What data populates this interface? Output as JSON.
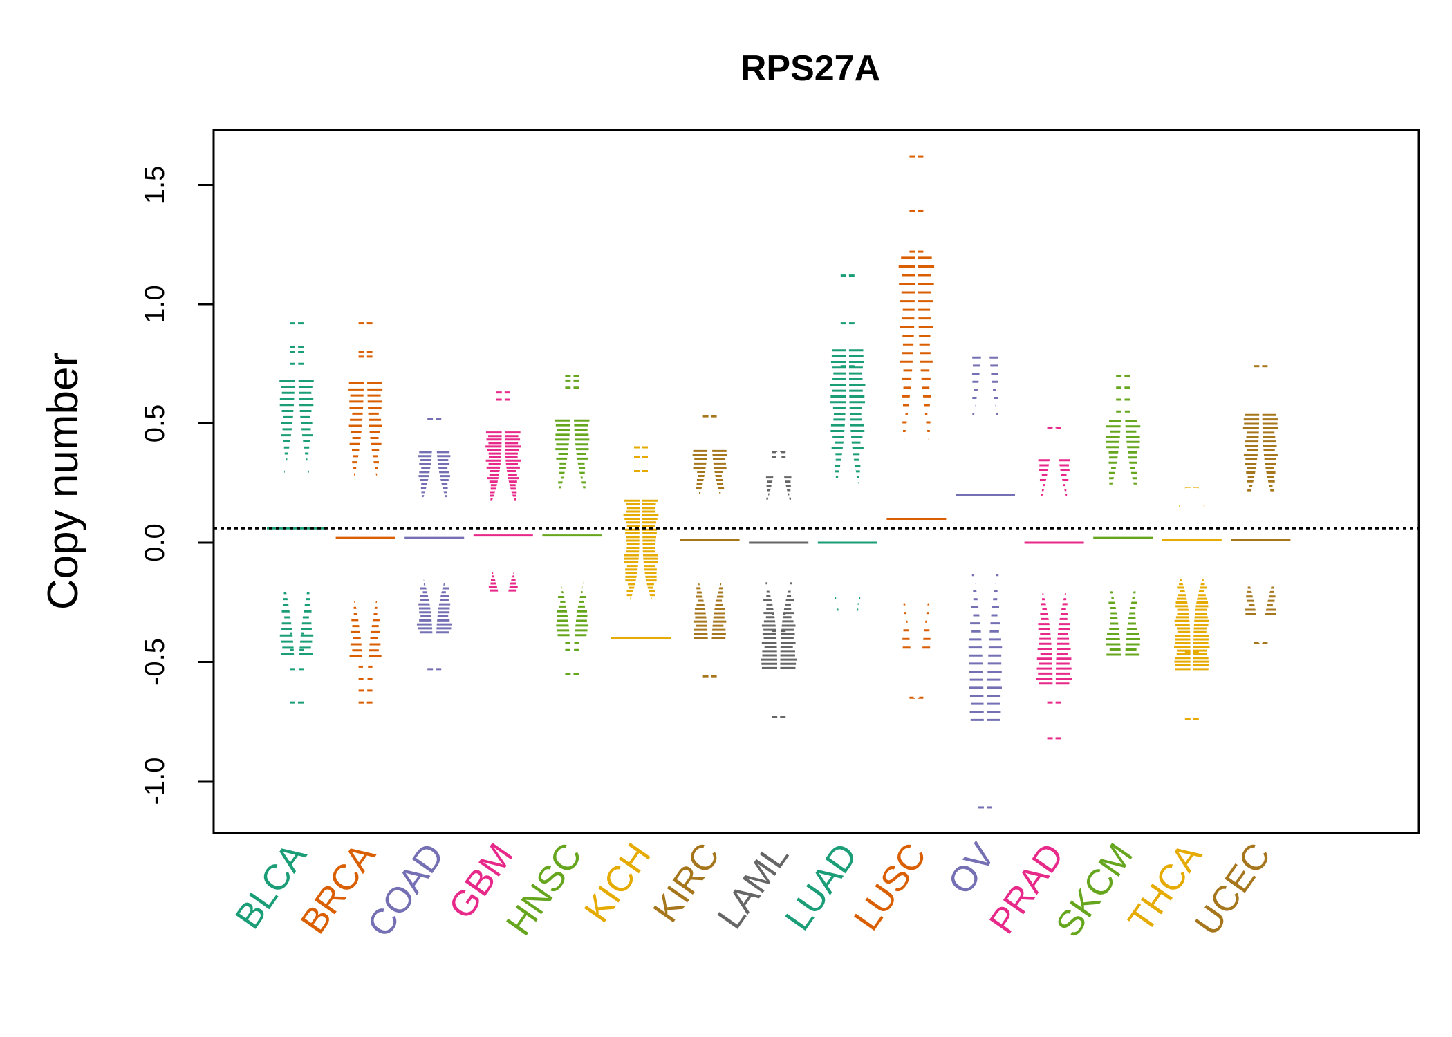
{
  "chart_data": {
    "type": "beanplot",
    "title": "RPS27A",
    "xlabel": "",
    "ylabel": "Copy number",
    "ylim": [
      -1.2,
      1.73
    ],
    "yticks": [
      -1.0,
      -0.5,
      0.0,
      0.5,
      1.0,
      1.5
    ],
    "ytick_labels": [
      "-1.0",
      "-0.5",
      "0.0",
      "0.5",
      "1.0",
      "1.5"
    ],
    "reference_line": 0.06,
    "grid": false,
    "legend": "none",
    "categories": [
      "BLCA",
      "BRCA",
      "COAD",
      "GBM",
      "HNSC",
      "KICH",
      "KIRC",
      "LAML",
      "LUAD",
      "LUSC",
      "OV",
      "PRAD",
      "SKCM",
      "THCA",
      "UCEC"
    ],
    "colors": [
      "#1b9e77",
      "#d95f02",
      "#7570b3",
      "#e7298a",
      "#66a61e",
      "#e6ab02",
      "#a6761d",
      "#666666",
      "#1b9e77",
      "#d95f02",
      "#7570b3",
      "#e7298a",
      "#66a61e",
      "#e6ab02",
      "#a6761d"
    ],
    "series": [
      {
        "name": "BLCA",
        "mean": 0.06,
        "min": -0.67,
        "max": 0.92,
        "outliers": [
          -0.67,
          -0.53,
          -0.45,
          -0.38,
          0.75,
          0.8,
          0.82,
          0.92
        ]
      },
      {
        "name": "BRCA",
        "mean": 0.02,
        "min": -0.67,
        "max": 0.92,
        "outliers": [
          -0.67,
          -0.62,
          -0.57,
          -0.52,
          0.78,
          0.8,
          0.92
        ]
      },
      {
        "name": "COAD",
        "mean": 0.02,
        "min": -0.53,
        "max": 0.52,
        "outliers": [
          -0.53,
          0.52
        ]
      },
      {
        "name": "GBM",
        "mean": 0.03,
        "min": -0.29,
        "max": 0.63,
        "outliers": [
          0.6,
          0.63
        ]
      },
      {
        "name": "HNSC",
        "mean": 0.03,
        "min": -0.55,
        "max": 0.7,
        "outliers": [
          -0.55,
          -0.45,
          -0.42,
          0.65,
          0.68,
          0.7
        ]
      },
      {
        "name": "KICH",
        "mean": -0.4,
        "min": -0.55,
        "max": 0.4,
        "outliers": [
          0.3,
          0.36,
          0.4
        ]
      },
      {
        "name": "KIRC",
        "mean": 0.01,
        "min": -0.56,
        "max": 0.53,
        "outliers": [
          -0.56,
          0.53
        ]
      },
      {
        "name": "LAML",
        "mean": 0.0,
        "min": -0.73,
        "max": 0.38,
        "outliers": [
          -0.73,
          -0.37,
          -0.3,
          -0.17,
          0.36,
          0.38
        ]
      },
      {
        "name": "LUAD",
        "mean": 0.0,
        "min": -0.39,
        "max": 1.12,
        "outliers": [
          0.74,
          0.92,
          1.12
        ]
      },
      {
        "name": "LUSC",
        "mean": 0.1,
        "min": -0.65,
        "max": 1.62,
        "outliers": [
          -0.65,
          1.22,
          1.39,
          1.62
        ]
      },
      {
        "name": "OV",
        "mean": 0.2,
        "min": -1.11,
        "max": 1.0,
        "outliers": [
          -1.11
        ]
      },
      {
        "name": "PRAD",
        "mean": 0.0,
        "min": -0.82,
        "max": 0.48,
        "outliers": [
          -0.82,
          -0.67,
          -0.57,
          0.48
        ]
      },
      {
        "name": "SKCM",
        "mean": 0.02,
        "min": -0.66,
        "max": 0.7,
        "outliers": [
          0.55,
          0.6,
          0.65,
          0.7
        ]
      },
      {
        "name": "THCA",
        "mean": 0.01,
        "min": -0.74,
        "max": 0.23,
        "outliers": [
          -0.74,
          -0.46,
          0.2,
          0.23
        ]
      },
      {
        "name": "UCEC",
        "mean": 0.01,
        "min": -0.42,
        "max": 0.74,
        "outliers": [
          -0.42,
          0.74
        ]
      }
    ]
  }
}
